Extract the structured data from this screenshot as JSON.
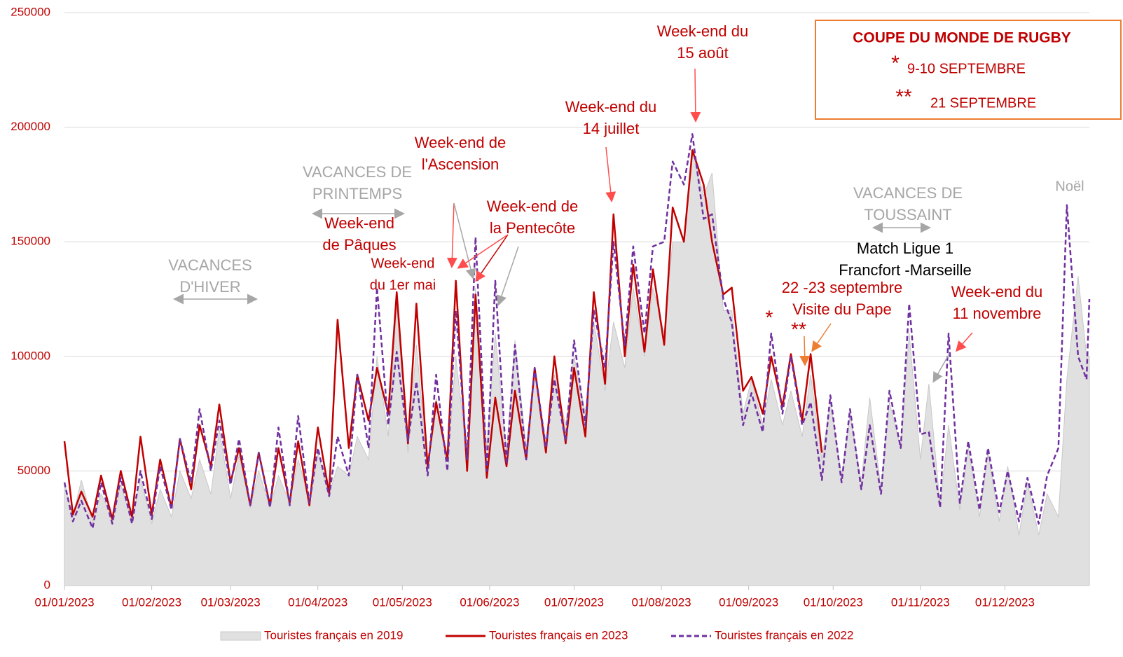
{
  "chart_data": {
    "type": "line",
    "x": [
      "2023-01-01",
      "2023-01-04",
      "2023-01-07",
      "2023-01-11",
      "2023-01-14",
      "2023-01-18",
      "2023-01-21",
      "2023-01-25",
      "2023-01-28",
      "2023-02-01",
      "2023-02-04",
      "2023-02-08",
      "2023-02-11",
      "2023-02-15",
      "2023-02-18",
      "2023-02-22",
      "2023-02-25",
      "2023-03-01",
      "2023-03-04",
      "2023-03-08",
      "2023-03-11",
      "2023-03-15",
      "2023-03-18",
      "2023-03-22",
      "2023-03-25",
      "2023-03-29",
      "2023-04-01",
      "2023-04-05",
      "2023-04-08",
      "2023-04-12",
      "2023-04-15",
      "2023-04-19",
      "2023-04-22",
      "2023-04-26",
      "2023-04-29",
      "2023-05-03",
      "2023-05-06",
      "2023-05-10",
      "2023-05-13",
      "2023-05-17",
      "2023-05-20",
      "2023-05-24",
      "2023-05-27",
      "2023-05-31",
      "2023-06-03",
      "2023-06-07",
      "2023-06-10",
      "2023-06-14",
      "2023-06-17",
      "2023-06-21",
      "2023-06-24",
      "2023-06-28",
      "2023-07-01",
      "2023-07-05",
      "2023-07-08",
      "2023-07-12",
      "2023-07-15",
      "2023-07-19",
      "2023-07-22",
      "2023-07-26",
      "2023-07-29",
      "2023-08-02",
      "2023-08-05",
      "2023-08-09",
      "2023-08-12",
      "2023-08-16",
      "2023-08-19",
      "2023-08-23",
      "2023-08-26",
      "2023-08-30",
      "2023-09-02",
      "2023-09-06",
      "2023-09-09",
      "2023-09-13",
      "2023-09-16",
      "2023-09-20",
      "2023-09-23",
      "2023-09-27",
      "2023-09-30",
      "2023-10-04",
      "2023-10-07",
      "2023-10-11",
      "2023-10-14",
      "2023-10-18",
      "2023-10-21",
      "2023-10-25",
      "2023-10-28",
      "2023-11-01",
      "2023-11-04",
      "2023-11-08",
      "2023-11-11",
      "2023-11-15",
      "2023-11-18",
      "2023-11-22",
      "2023-11-25",
      "2023-11-29",
      "2023-12-02",
      "2023-12-06",
      "2023-12-09",
      "2023-12-13",
      "2023-12-16",
      "2023-12-20",
      "2023-12-23",
      "2023-12-27",
      "2023-12-30",
      "2023-12-31"
    ],
    "series": [
      {
        "name": "Touristes français en 2019",
        "color": "#e0e0e0",
        "style": "area",
        "values": [
          45000,
          30000,
          46000,
          28000,
          40000,
          30000,
          44000,
          28000,
          47000,
          27000,
          42000,
          30000,
          50000,
          38000,
          55000,
          40000,
          68000,
          38000,
          57000,
          34000,
          50000,
          34000,
          48000,
          36000,
          55000,
          37000,
          58000,
          40000,
          52000,
          48000,
          65000,
          55000,
          100000,
          65000,
          122000,
          58000,
          105000,
          50000,
          82000,
          50000,
          100000,
          55000,
          130000,
          60000,
          110000,
          58000,
          107000,
          60000,
          95000,
          63000,
          92000,
          70000,
          100000,
          75000,
          115000,
          85000,
          115000,
          95000,
          130000,
          100000,
          130000,
          110000,
          150000,
          150000,
          190000,
          170000,
          180000,
          120000,
          120000,
          75000,
          90000,
          70000,
          90000,
          70000,
          85000,
          65000,
          92000,
          55000,
          80000,
          48000,
          75000,
          45000,
          82000,
          42000,
          80000,
          60000,
          110000,
          55000,
          88000,
          35000,
          70000,
          33000,
          60000,
          30000,
          58000,
          28000,
          52000,
          22000,
          45000,
          22000,
          40000,
          30000,
          90000,
          135000,
          100000,
          100000
        ]
      },
      {
        "name": "Touristes français en 2023",
        "color": "#c00000",
        "style": "solid",
        "values": [
          63000,
          31000,
          41000,
          30000,
          48000,
          29000,
          50000,
          30000,
          65000,
          31000,
          55000,
          34000,
          64000,
          42000,
          70000,
          52000,
          79000,
          45000,
          60000,
          35000,
          58000,
          35000,
          60000,
          36000,
          63000,
          35000,
          69000,
          40000,
          116000,
          60000,
          92000,
          72000,
          95000,
          75000,
          128000,
          62000,
          123000,
          52000,
          80000,
          55000,
          133000,
          50000,
          127000,
          47000,
          82000,
          52000,
          85000,
          55000,
          95000,
          58000,
          100000,
          62000,
          95000,
          65000,
          128000,
          88000,
          162000,
          100000,
          140000,
          102000,
          138000,
          105000,
          165000,
          150000,
          190000,
          175000,
          150000,
          127000,
          130000,
          85000,
          91000,
          75000,
          100000,
          78000,
          101000,
          72000,
          101000,
          58000,
          null,
          null,
          null,
          null,
          null,
          null,
          null,
          null,
          null,
          null,
          null,
          null,
          null,
          null,
          null,
          null,
          null,
          null,
          null,
          null,
          null,
          null,
          null,
          null,
          null,
          null,
          null,
          null
        ]
      },
      {
        "name": "Touristes français en 2022",
        "color": "#7030a0",
        "style": "dashed",
        "values": [
          45000,
          28000,
          37000,
          25000,
          45000,
          27000,
          47000,
          27000,
          50000,
          29000,
          52000,
          33000,
          64000,
          45000,
          77000,
          50000,
          72000,
          44000,
          64000,
          35000,
          58000,
          34000,
          69000,
          35000,
          74000,
          36000,
          60000,
          39000,
          65000,
          48000,
          92000,
          60000,
          130000,
          70000,
          102000,
          63000,
          89000,
          48000,
          92000,
          50000,
          120000,
          55000,
          152000,
          50000,
          133000,
          53000,
          105000,
          55000,
          95000,
          60000,
          90000,
          63000,
          107000,
          70000,
          120000,
          95000,
          150000,
          105000,
          148000,
          110000,
          148000,
          150000,
          185000,
          175000,
          197000,
          160000,
          162000,
          125000,
          115000,
          70000,
          84000,
          67000,
          110000,
          75000,
          100000,
          70000,
          80000,
          46000,
          83000,
          45000,
          77000,
          42000,
          70000,
          40000,
          85000,
          60000,
          123000,
          66000,
          67000,
          34000,
          110000,
          36000,
          63000,
          33000,
          60000,
          32000,
          50000,
          28000,
          47000,
          27000,
          48000,
          60000,
          166000,
          100000,
          90000,
          125000
        ]
      }
    ],
    "xlim": [
      "2023-01-01",
      "2023-12-31"
    ],
    "xticks": [
      {
        "value": "2023-01-01",
        "label": "01/01/2023"
      },
      {
        "value": "2023-02-01",
        "label": "01/02/2023"
      },
      {
        "value": "2023-03-01",
        "label": "01/03/2023"
      },
      {
        "value": "2023-04-01",
        "label": "01/04/2023"
      },
      {
        "value": "2023-05-01",
        "label": "01/05/2023"
      },
      {
        "value": "2023-06-01",
        "label": "01/06/2023"
      },
      {
        "value": "2023-07-01",
        "label": "01/07/2023"
      },
      {
        "value": "2023-08-01",
        "label": "01/08/2023"
      },
      {
        "value": "2023-09-01",
        "label": "01/09/2023"
      },
      {
        "value": "2023-10-01",
        "label": "01/10/2023"
      },
      {
        "value": "2023-11-01",
        "label": "01/11/2023"
      },
      {
        "value": "2023-12-01",
        "label": "01/12/2023"
      }
    ],
    "ylim": [
      0,
      250000
    ],
    "yticks": [
      0,
      50000,
      100000,
      150000,
      200000,
      250000
    ],
    "grid": true,
    "legend": "bottom",
    "annotations": [
      {
        "lines": [
          "VACANCES",
          "D'HIVER"
        ],
        "color": "#a6a6a6"
      },
      {
        "lines": [
          "VACANCES DE",
          "PRINTEMPS"
        ],
        "color": "#a6a6a6"
      },
      {
        "lines": [
          "Week-end",
          "de Pâques"
        ],
        "color": "#c00000"
      },
      {
        "lines": [
          "Week-end",
          "du 1er mai"
        ],
        "color": "#c00000"
      },
      {
        "lines": [
          "Week-end de",
          "l'Ascension"
        ],
        "color": "#c00000"
      },
      {
        "lines": [
          "Week-end de",
          "la Pentecôte"
        ],
        "color": "#c00000"
      },
      {
        "lines": [
          "Week-end du",
          "14 juillet"
        ],
        "color": "#c00000"
      },
      {
        "lines": [
          "Week-end du",
          "15 août"
        ],
        "color": "#c00000"
      },
      {
        "lines": [
          "VACANCES DE",
          "TOUSSAINT"
        ],
        "color": "#a6a6a6"
      },
      {
        "lines": [
          "Match Ligue 1",
          "Francfort -Marseille"
        ],
        "color": "#000000"
      },
      {
        "lines": [
          "22 -23 septembre",
          "Visite du Pape"
        ],
        "color": "#c00000"
      },
      {
        "lines": [
          "Week-end du",
          "11 novembre"
        ],
        "color": "#c00000"
      },
      {
        "lines": [
          "Noël"
        ],
        "color": "#a6a6a6"
      },
      {
        "lines": [
          "*"
        ],
        "color": "#c00000"
      },
      {
        "lines": [
          "**"
        ],
        "color": "#c00000"
      }
    ],
    "box": {
      "title": "COUPE DU MONDE DE RUGBY",
      "items": [
        {
          "mark": "*",
          "text": "9-10 SEPTEMBRE"
        },
        {
          "mark": "**",
          "text": "21 SEPTEMBRE"
        }
      ]
    }
  }
}
